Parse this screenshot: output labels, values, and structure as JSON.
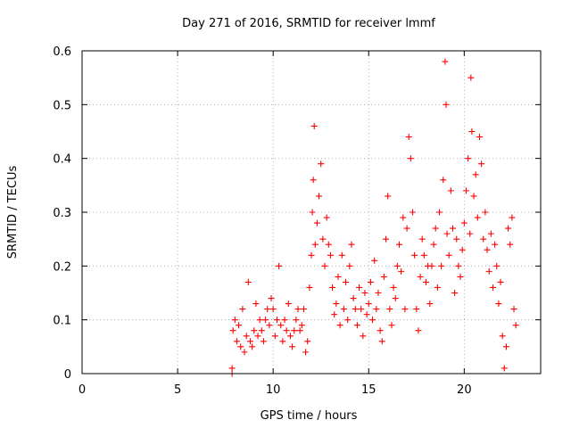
{
  "chart_data": {
    "type": "scatter",
    "title": "Day 271 of 2016, SRMTID for receiver lmmf",
    "xlabel": "GPS time / hours",
    "ylabel": "SRMTID / TECUs",
    "xlim": [
      0,
      24
    ],
    "ylim": [
      0,
      0.6
    ],
    "xticks": [
      "0",
      "5",
      "10",
      "15",
      "20"
    ],
    "yticks": [
      "0",
      "0.1",
      "0.2",
      "0.3",
      "0.4",
      "0.5",
      "0.6"
    ],
    "grid": true,
    "marker": "plus",
    "color": "#ff0000",
    "series": [
      {
        "x": [
          7.85,
          7.85,
          7.9,
          8.0,
          8.1,
          8.2,
          8.3,
          8.4,
          8.5,
          8.6,
          8.7,
          8.8,
          8.9,
          9.0,
          9.1,
          9.2,
          9.3,
          9.4,
          9.5,
          9.6,
          9.7,
          9.8,
          9.9,
          10.0,
          10.1,
          10.2,
          10.3,
          10.4,
          10.5,
          10.6,
          10.7,
          10.8,
          10.9,
          11.0,
          11.1,
          11.2,
          11.3,
          11.4,
          11.5,
          11.6,
          11.7,
          11.8,
          11.9,
          12.0,
          12.05,
          12.1,
          12.15,
          12.2,
          12.3,
          12.4,
          12.5,
          12.6,
          12.7,
          12.8,
          12.9,
          13.0,
          13.1,
          13.2,
          13.3,
          13.4,
          13.5,
          13.6,
          13.7,
          13.8,
          13.9,
          14.0,
          14.1,
          14.2,
          14.3,
          14.4,
          14.5,
          14.6,
          14.7,
          14.8,
          14.9,
          15.0,
          15.1,
          15.2,
          15.3,
          15.4,
          15.5,
          15.6,
          15.7,
          15.8,
          15.9,
          16.0,
          16.1,
          16.2,
          16.3,
          16.4,
          16.5,
          16.6,
          16.7,
          16.8,
          16.9,
          17.0,
          17.1,
          17.2,
          17.3,
          17.4,
          17.5,
          17.6,
          17.7,
          17.8,
          17.9,
          18.0,
          18.1,
          18.2,
          18.3,
          18.4,
          18.5,
          18.6,
          18.7,
          18.8,
          18.9,
          19.0,
          19.05,
          19.1,
          19.2,
          19.3,
          19.4,
          19.5,
          19.6,
          19.7,
          19.8,
          19.9,
          20.0,
          20.1,
          20.2,
          20.3,
          20.35,
          20.4,
          20.5,
          20.6,
          20.7,
          20.8,
          20.9,
          21.0,
          21.1,
          21.2,
          21.3,
          21.4,
          21.5,
          21.6,
          21.7,
          21.8,
          21.9,
          22.0,
          22.1,
          22.2,
          22.3,
          22.4,
          22.5,
          22.6,
          22.7
        ],
        "y": [
          0.0,
          0.01,
          0.08,
          0.1,
          0.06,
          0.09,
          0.05,
          0.12,
          0.04,
          0.07,
          0.17,
          0.06,
          0.05,
          0.08,
          0.13,
          0.07,
          0.1,
          0.08,
          0.06,
          0.1,
          0.12,
          0.09,
          0.14,
          0.12,
          0.07,
          0.1,
          0.2,
          0.09,
          0.06,
          0.1,
          0.08,
          0.13,
          0.07,
          0.05,
          0.08,
          0.1,
          0.12,
          0.08,
          0.09,
          0.12,
          0.04,
          0.06,
          0.16,
          0.22,
          0.3,
          0.36,
          0.46,
          0.24,
          0.28,
          0.33,
          0.39,
          0.25,
          0.2,
          0.29,
          0.24,
          0.22,
          0.16,
          0.11,
          0.13,
          0.18,
          0.09,
          0.22,
          0.12,
          0.17,
          0.1,
          0.2,
          0.24,
          0.14,
          0.12,
          0.09,
          0.16,
          0.12,
          0.07,
          0.15,
          0.11,
          0.13,
          0.17,
          0.1,
          0.21,
          0.12,
          0.15,
          0.08,
          0.06,
          0.18,
          0.25,
          0.33,
          0.12,
          0.09,
          0.16,
          0.14,
          0.2,
          0.24,
          0.19,
          0.29,
          0.12,
          0.27,
          0.44,
          0.4,
          0.3,
          0.22,
          0.12,
          0.08,
          0.18,
          0.25,
          0.22,
          0.17,
          0.2,
          0.13,
          0.2,
          0.24,
          0.27,
          0.16,
          0.3,
          0.2,
          0.36,
          0.58,
          0.5,
          0.26,
          0.22,
          0.34,
          0.27,
          0.15,
          0.25,
          0.2,
          0.18,
          0.23,
          0.28,
          0.34,
          0.4,
          0.26,
          0.55,
          0.45,
          0.33,
          0.37,
          0.29,
          0.44,
          0.39,
          0.25,
          0.3,
          0.23,
          0.19,
          0.26,
          0.16,
          0.24,
          0.2,
          0.13,
          0.17,
          0.07,
          0.01,
          0.05,
          0.27,
          0.24,
          0.29,
          0.12,
          0.09
        ]
      }
    ]
  }
}
